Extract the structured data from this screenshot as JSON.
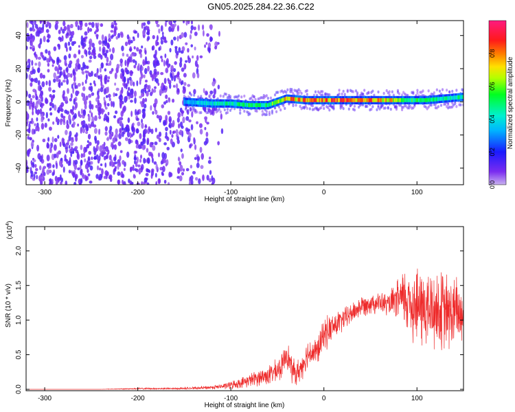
{
  "figure_title": "GN05.2025.284.22.36.C22",
  "colors": {
    "snr_line": "#ee2b2b",
    "axis": "#000000",
    "background": "#ffffff"
  },
  "chart_data": [
    {
      "type": "heatmap",
      "title": "GN05.2025.284.22.36.C22",
      "xlabel": "Height of straight line (km)",
      "ylabel": "Frequency (Hz)",
      "xlim": [
        -320,
        150
      ],
      "ylim": [
        -50,
        49
      ],
      "xticks": [
        -300,
        -200,
        -100,
        0,
        100
      ],
      "xtick_labels": [
        "-300",
        "-200",
        "-100",
        "0",
        "100"
      ],
      "yticks": [
        -40,
        -20,
        0,
        20,
        40
      ],
      "ytick_labels": [
        "-40",
        "-20",
        "0",
        "20",
        "40"
      ],
      "colorbar": {
        "label": "Normalized spectral amplitude",
        "range": [
          0.0,
          1.0
        ],
        "ticks": [
          0.0,
          0.2,
          0.4,
          0.6,
          0.8
        ],
        "tick_labels": [
          "0.0",
          "0.2",
          "0.4",
          "0.6",
          "0.8"
        ],
        "colormap": "rainbow (violet-blue-cyan-green-yellow-red-magenta)"
      },
      "signal_ridge": {
        "description": "Carrier ridge near 0 Hz from about -150 km to 150 km; diffuse noise below -110 km",
        "points": [
          {
            "x": -150,
            "freq": 0,
            "amp": 0.35
          },
          {
            "x": -120,
            "freq": -1,
            "amp": 0.45
          },
          {
            "x": -100,
            "freq": -1,
            "amp": 0.5
          },
          {
            "x": -80,
            "freq": -2,
            "amp": 0.55
          },
          {
            "x": -60,
            "freq": -2,
            "amp": 0.6
          },
          {
            "x": -50,
            "freq": 0,
            "amp": 0.7
          },
          {
            "x": -40,
            "freq": 2,
            "amp": 0.85
          },
          {
            "x": -20,
            "freq": 1,
            "amp": 0.88
          },
          {
            "x": 0,
            "freq": 1,
            "amp": 0.92
          },
          {
            "x": 20,
            "freq": 1,
            "amp": 0.9
          },
          {
            "x": 50,
            "freq": 1,
            "amp": 0.88
          },
          {
            "x": 70,
            "freq": 1,
            "amp": 0.85
          },
          {
            "x": 90,
            "freq": 1,
            "amp": 0.6
          },
          {
            "x": 110,
            "freq": 1,
            "amp": 0.55
          },
          {
            "x": 130,
            "freq": 2,
            "amp": 0.5
          },
          {
            "x": 150,
            "freq": 3,
            "amp": 0.5
          }
        ]
      }
    },
    {
      "type": "line",
      "xlabel": "Height of straight line (km)",
      "ylabel": "SNR (10 * v/v)",
      "scale_label": "(x10",
      "scale_exponent": "4",
      "scale_close": ")",
      "xlim": [
        -320,
        150
      ],
      "ylim": [
        -0.02,
        2.35
      ],
      "xticks": [
        -300,
        -200,
        -100,
        0,
        100
      ],
      "xtick_labels": [
        "-300",
        "-200",
        "-100",
        "0",
        "100"
      ],
      "yticks": [
        0.0,
        0.5,
        1.0,
        1.5,
        2.0
      ],
      "ytick_labels": [
        "0.0",
        "0.5",
        "1.0",
        "1.5",
        "2.0"
      ],
      "series": [
        {
          "name": "SNR",
          "x": [
            -320,
            -280,
            -240,
            -200,
            -160,
            -130,
            -110,
            -100,
            -90,
            -80,
            -70,
            -60,
            -50,
            -45,
            -40,
            -35,
            -30,
            -25,
            -20,
            -15,
            -10,
            -5,
            0,
            10,
            20,
            30,
            40,
            50,
            60,
            70,
            80,
            90,
            100,
            110,
            120,
            130,
            140,
            150
          ],
          "values": [
            0.0,
            0.0,
            0.0,
            0.01,
            0.01,
            0.02,
            0.04,
            0.06,
            0.09,
            0.13,
            0.17,
            0.2,
            0.27,
            0.33,
            0.55,
            0.3,
            0.22,
            0.3,
            0.45,
            0.55,
            0.52,
            0.6,
            0.8,
            0.9,
            1.0,
            1.1,
            1.2,
            1.25,
            1.25,
            1.22,
            1.3,
            1.3,
            1.2,
            1.15,
            1.15,
            1.1,
            1.1,
            1.1
          ],
          "noise": [
            0.0,
            0.0,
            0.0,
            0.01,
            0.01,
            0.02,
            0.03,
            0.05,
            0.06,
            0.08,
            0.1,
            0.12,
            0.14,
            0.15,
            0.18,
            0.16,
            0.15,
            0.16,
            0.17,
            0.18,
            0.18,
            0.18,
            0.2,
            0.18,
            0.14,
            0.13,
            0.13,
            0.13,
            0.13,
            0.14,
            0.25,
            0.45,
            0.5,
            0.5,
            0.5,
            0.5,
            0.45,
            0.45
          ]
        }
      ]
    }
  ]
}
